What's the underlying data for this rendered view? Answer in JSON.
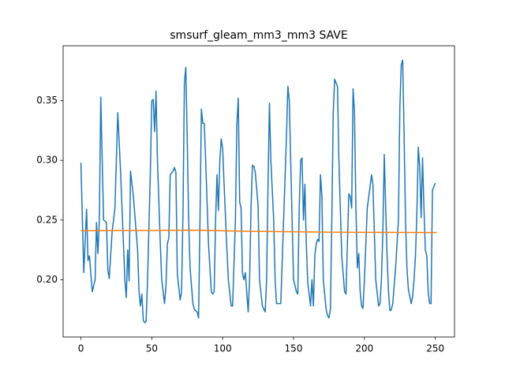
{
  "chart_data": {
    "type": "line",
    "title": "smsurf_gleam_mm3_mm3 SAVE",
    "xlim": [
      -12.55,
      263.55
    ],
    "ylim": [
      0.152,
      0.396
    ],
    "xticks": [
      0,
      50,
      100,
      150,
      200,
      250
    ],
    "yticks": [
      {
        "value": 0.2,
        "label": "0.20"
      },
      0.25,
      {
        "value": 0.3,
        "label": "0.30"
      },
      0.35
    ],
    "series": [
      {
        "color": "#1f77b4",
        "x": [
          0,
          2,
          4,
          5,
          6,
          8,
          10,
          11,
          12,
          13,
          14,
          16,
          18,
          19,
          20,
          22,
          24,
          26,
          28,
          30,
          31,
          32,
          33,
          34,
          35,
          37,
          40,
          41,
          42,
          43,
          44,
          45,
          46,
          47,
          49,
          50,
          51,
          52,
          53,
          54,
          56,
          57,
          59,
          60,
          61,
          62,
          63,
          65,
          66,
          67,
          68,
          70,
          71,
          72,
          73,
          74,
          75,
          76,
          77,
          79,
          80,
          82,
          83,
          84,
          85,
          86,
          87,
          88,
          90,
          92,
          93,
          94,
          95,
          96,
          97,
          98,
          99,
          100,
          101,
          103,
          104,
          106,
          107,
          109,
          110,
          111,
          112,
          113,
          114,
          115,
          116,
          118,
          119,
          120,
          121,
          122,
          123,
          125,
          126,
          128,
          130,
          131,
          132,
          133,
          134,
          136,
          137,
          138,
          139,
          141,
          143,
          145,
          146,
          147,
          148,
          150,
          152,
          153,
          154,
          155,
          156,
          157,
          158,
          159,
          160,
          162,
          163,
          164,
          165,
          166,
          167,
          168,
          169,
          170,
          171,
          173,
          174,
          175,
          176,
          177,
          178,
          179,
          181,
          182,
          184,
          186,
          187,
          188,
          189,
          190,
          191,
          192,
          193,
          194,
          195,
          196,
          197,
          198,
          199,
          200,
          202,
          204,
          205,
          206,
          208,
          210,
          211,
          212,
          213,
          214,
          215,
          216,
          217,
          218,
          219,
          220,
          222,
          224,
          225,
          226,
          227,
          228,
          229,
          230,
          231,
          233,
          234,
          235,
          236,
          237,
          238,
          239,
          240,
          241,
          242,
          243,
          244,
          245,
          246,
          247,
          248,
          249,
          250
        ],
        "values": [
          0.298,
          0.206,
          0.259,
          0.216,
          0.22,
          0.19,
          0.2,
          0.248,
          0.222,
          0.25,
          0.353,
          0.25,
          0.248,
          0.208,
          0.201,
          0.24,
          0.26,
          0.34,
          0.29,
          0.23,
          0.2,
          0.185,
          0.225,
          0.199,
          0.291,
          0.27,
          0.225,
          0.19,
          0.178,
          0.188,
          0.166,
          0.164,
          0.165,
          0.2,
          0.29,
          0.35,
          0.351,
          0.324,
          0.358,
          0.3,
          0.23,
          0.2,
          0.18,
          0.195,
          0.23,
          0.235,
          0.288,
          0.291,
          0.294,
          0.29,
          0.205,
          0.183,
          0.19,
          0.255,
          0.365,
          0.378,
          0.318,
          0.25,
          0.21,
          0.18,
          0.175,
          0.173,
          0.168,
          0.25,
          0.343,
          0.331,
          0.331,
          0.3,
          0.23,
          0.19,
          0.188,
          0.19,
          0.25,
          0.288,
          0.258,
          0.3,
          0.318,
          0.31,
          0.28,
          0.225,
          0.2,
          0.178,
          0.178,
          0.25,
          0.33,
          0.352,
          0.265,
          0.26,
          0.205,
          0.2,
          0.206,
          0.173,
          0.2,
          0.26,
          0.296,
          0.295,
          0.29,
          0.262,
          0.2,
          0.178,
          0.173,
          0.2,
          0.28,
          0.348,
          0.3,
          0.25,
          0.2,
          0.18,
          0.18,
          0.18,
          0.25,
          0.32,
          0.362,
          0.35,
          0.3,
          0.2,
          0.19,
          0.188,
          0.26,
          0.3,
          0.302,
          0.25,
          0.28,
          0.23,
          0.198,
          0.178,
          0.2,
          0.178,
          0.22,
          0.23,
          0.234,
          0.232,
          0.288,
          0.27,
          0.2,
          0.175,
          0.17,
          0.168,
          0.175,
          0.25,
          0.34,
          0.368,
          0.362,
          0.3,
          0.22,
          0.19,
          0.188,
          0.23,
          0.272,
          0.27,
          0.26,
          0.36,
          0.34,
          0.26,
          0.21,
          0.222,
          0.19,
          0.178,
          0.176,
          0.2,
          0.26,
          0.278,
          0.288,
          0.28,
          0.2,
          0.178,
          0.18,
          0.2,
          0.24,
          0.305,
          0.26,
          0.22,
          0.19,
          0.174,
          0.175,
          0.18,
          0.21,
          0.25,
          0.345,
          0.38,
          0.384,
          0.32,
          0.25,
          0.21,
          0.192,
          0.18,
          0.186,
          0.2,
          0.22,
          0.255,
          0.311,
          0.295,
          0.252,
          0.302,
          0.26,
          0.225,
          0.22,
          0.19,
          0.18,
          0.18,
          0.275,
          0.278,
          0.281
        ]
      },
      {
        "color": "#ff7f0e",
        "x": [
          0,
          50,
          80,
          120,
          180,
          251
        ],
        "values": [
          0.241,
          0.2413,
          0.2415,
          0.2405,
          0.2398,
          0.2395
        ]
      }
    ]
  }
}
